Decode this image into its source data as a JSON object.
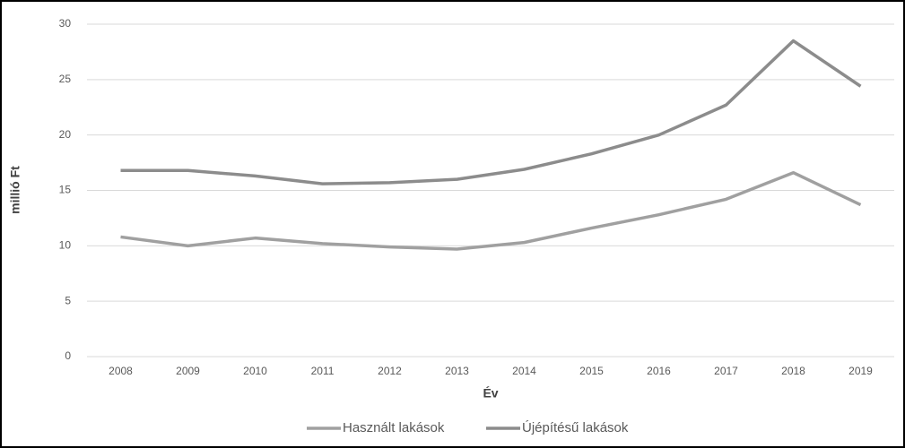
{
  "chart_data": {
    "type": "line",
    "y_label": "millió Ft",
    "x_label": "Év",
    "categories": [
      "2008",
      "2009",
      "2010",
      "2011",
      "2012",
      "2013",
      "2014",
      "2015",
      "2016",
      "2017",
      "2018",
      "2019"
    ],
    "series": [
      {
        "name": "Használt lakások",
        "color": "#a0a0a0",
        "values": [
          10.8,
          10.0,
          10.7,
          10.2,
          9.9,
          9.7,
          10.3,
          11.6,
          12.8,
          14.2,
          16.6,
          13.7
        ]
      },
      {
        "name": "Újépítésű lakások",
        "color": "#8c8c8c",
        "values": [
          16.8,
          16.8,
          16.3,
          15.6,
          15.7,
          16.0,
          16.9,
          18.3,
          20.0,
          22.7,
          28.5,
          24.4
        ]
      }
    ],
    "ylim": [
      0,
      30
    ],
    "yticks": [
      0,
      5,
      10,
      15,
      20,
      25,
      30
    ],
    "grid": true,
    "legend": "bottom"
  }
}
